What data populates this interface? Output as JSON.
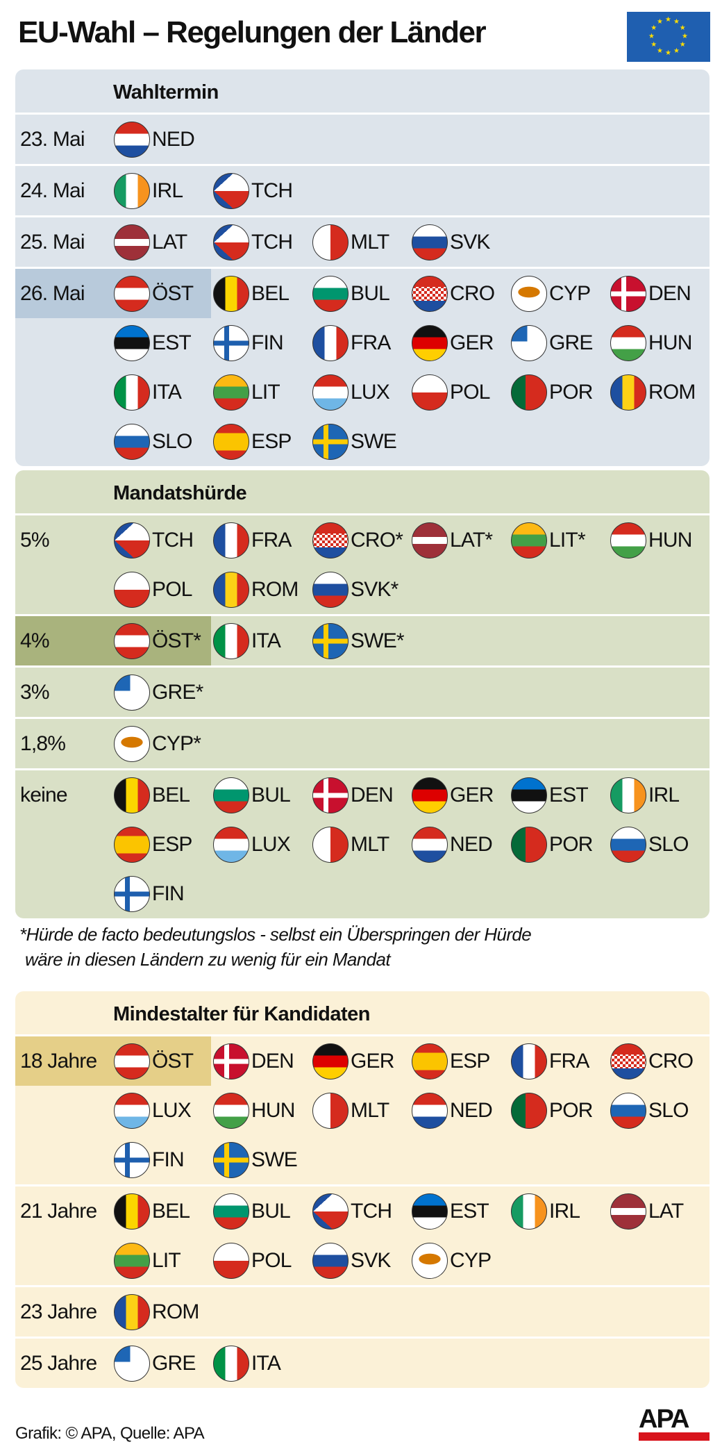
{
  "title": "EU-Wahl – Regelungen der Länder",
  "logo_eu": "eu-flag",
  "sections": [
    {
      "title": "Wahltermin",
      "bg": "#dde4eb",
      "highlight": "#b8cadb",
      "rows": [
        {
          "label": "23. Mai",
          "highlighted": false,
          "entries": [
            "NED"
          ]
        },
        {
          "label": "24. Mai",
          "highlighted": false,
          "entries": [
            "IRL",
            "TCH"
          ]
        },
        {
          "label": "25. Mai",
          "highlighted": false,
          "entries": [
            "LAT",
            "TCH",
            "MLT",
            "SVK"
          ]
        },
        {
          "label": "26. Mai",
          "highlighted": true,
          "entries": [
            "ÖST",
            "BEL",
            "BUL",
            "CRO",
            "CYP",
            "DEN",
            "EST",
            "FIN",
            "FRA",
            "GER",
            "GRE",
            "HUN",
            "ITA",
            "LIT",
            "LUX",
            "POL",
            "POR",
            "ROM",
            "SLO",
            "ESP",
            "SWE"
          ]
        }
      ]
    },
    {
      "title": "Mandatshürde",
      "bg": "#d9e0c6",
      "highlight": "#a9b37d",
      "rows": [
        {
          "label": "5%",
          "highlighted": false,
          "entries": [
            "TCH",
            "FRA",
            "CRO*",
            "LAT*",
            "LIT*",
            "HUN",
            "POL",
            "ROM",
            "SVK*"
          ]
        },
        {
          "label": "4%",
          "highlighted": true,
          "entries": [
            "ÖST*",
            "ITA",
            "SWE*"
          ]
        },
        {
          "label": "3%",
          "highlighted": false,
          "entries": [
            "GRE*"
          ]
        },
        {
          "label": "1,8%",
          "highlighted": false,
          "entries": [
            "CYP*"
          ]
        },
        {
          "label": "keine",
          "highlighted": false,
          "entries": [
            "BEL",
            "BUL",
            "DEN",
            "GER",
            "EST",
            "IRL",
            "ESP",
            "LUX",
            "MLT",
            "NED",
            "POR",
            "SLO",
            "FIN"
          ]
        }
      ]
    },
    {
      "title": "Mindestalter für Kandidaten",
      "bg": "#fbf1d7",
      "highlight": "#e5cf88",
      "rows": [
        {
          "label": "18 Jahre",
          "highlighted": true,
          "entries": [
            "ÖST",
            "DEN",
            "GER",
            "ESP",
            "FRA",
            "CRO",
            "LUX",
            "HUN",
            "MLT",
            "NED",
            "POR",
            "SLO",
            "FIN",
            "SWE"
          ]
        },
        {
          "label": "21 Jahre",
          "highlighted": false,
          "entries": [
            "BEL",
            "BUL",
            "TCH",
            "EST",
            "IRL",
            "LAT",
            "LIT",
            "POL",
            "SVK",
            "CYP"
          ]
        },
        {
          "label": "23 Jahre",
          "highlighted": false,
          "entries": [
            "ROM"
          ]
        },
        {
          "label": "25 Jahre",
          "highlighted": false,
          "entries": [
            "GRE",
            "ITA"
          ]
        }
      ]
    }
  ],
  "footnote": {
    "line1": "*Hürde de facto bedeutungslos - selbst ein Überspringen der Hürde",
    "line2": "wäre in diesen Ländern zu wenig für ein Mandat"
  },
  "footer": "Grafik: © APA, Quelle: APA",
  "apa_logo": "APA"
}
